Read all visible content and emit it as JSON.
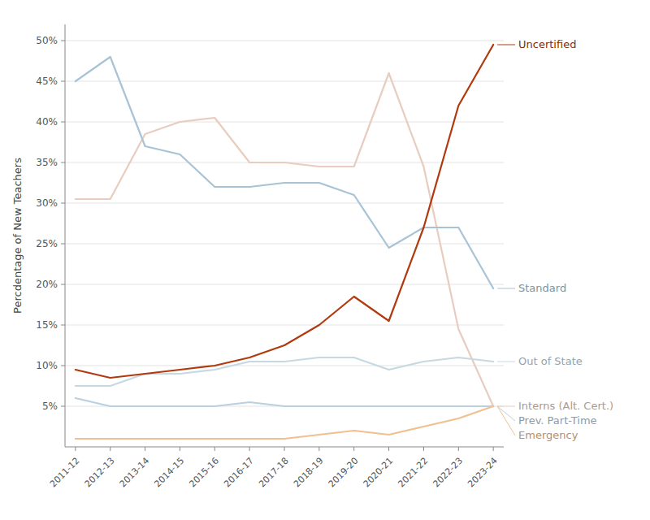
{
  "chart_data": {
    "type": "line",
    "categories": [
      "2011-12",
      "2012-13",
      "2013-14",
      "2014-15",
      "2015-16",
      "2016-17",
      "2017-18",
      "2018-19",
      "2019-20",
      "2020-21",
      "2021-22",
      "2022-23",
      "2023-24"
    ],
    "series": [
      {
        "name": "Interns (Alt. Cert.)",
        "color": "#E8CDBF",
        "values": [
          30.5,
          30.5,
          38.5,
          40.0,
          40.5,
          35.0,
          35.0,
          34.5,
          34.5,
          46.0,
          34.5,
          14.5,
          5.0
        ]
      },
      {
        "name": "Standard",
        "color": "#A8C3D5",
        "values": [
          45.0,
          48.0,
          37.0,
          36.0,
          32.0,
          32.0,
          32.5,
          32.5,
          31.0,
          24.5,
          27.0,
          27.0,
          19.5
        ]
      },
      {
        "name": "Out of State",
        "color": "#C8D8E2",
        "values": [
          7.5,
          7.5,
          9.0,
          9.0,
          9.5,
          10.5,
          10.5,
          11.0,
          11.0,
          9.5,
          10.5,
          11.0,
          10.5
        ]
      },
      {
        "name": "Prev. Part-Time",
        "color": "#B8D0E0",
        "values": [
          6.0,
          5.0,
          5.0,
          5.0,
          5.0,
          5.5,
          5.0,
          5.0,
          5.0,
          5.0,
          5.0,
          5.0,
          5.0
        ]
      },
      {
        "name": "Emergency",
        "color": "#F0C090",
        "values": [
          1.0,
          1.0,
          1.0,
          1.0,
          1.0,
          1.0,
          1.0,
          1.5,
          2.0,
          1.5,
          2.5,
          3.5,
          5.0
        ]
      },
      {
        "name": "Uncertified",
        "color": "#B03A0E",
        "values": [
          9.5,
          8.5,
          9.0,
          9.5,
          10.0,
          11.0,
          12.5,
          15.0,
          18.5,
          15.5,
          27.0,
          42.0,
          49.5
        ]
      }
    ],
    "y_label": "Percdentage of New Teachers",
    "ylim": [
      0,
      52
    ],
    "yticks": [
      {
        "value": 5,
        "label": "5%"
      },
      {
        "value": 10,
        "label": "10%"
      },
      {
        "value": 15,
        "label": "15%"
      },
      {
        "value": 20,
        "label": "20%"
      },
      {
        "value": 25,
        "label": "25%"
      },
      {
        "value": 30,
        "label": "30%"
      },
      {
        "value": 35,
        "label": "35%"
      },
      {
        "value": 40,
        "label": "40%"
      },
      {
        "value": 45,
        "label": "45%"
      },
      {
        "value": 50,
        "label": "50%"
      }
    ],
    "grid": true
  }
}
